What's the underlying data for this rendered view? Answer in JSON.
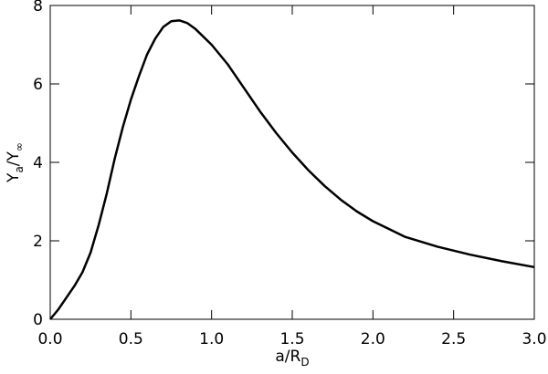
{
  "chart_data": {
    "type": "line",
    "xlabel": {
      "main": "a/R",
      "sub": "D"
    },
    "ylabel": {
      "main": "Y",
      "sub": "a",
      "main2": "/Y",
      "sub2": "∞"
    },
    "x": [
      0.0,
      0.05,
      0.1,
      0.15,
      0.2,
      0.25,
      0.3,
      0.35,
      0.4,
      0.45,
      0.5,
      0.55,
      0.6,
      0.65,
      0.7,
      0.75,
      0.8,
      0.85,
      0.9,
      1.0,
      1.1,
      1.2,
      1.3,
      1.4,
      1.5,
      1.6,
      1.7,
      1.8,
      1.9,
      2.0,
      2.2,
      2.4,
      2.6,
      2.8,
      3.0
    ],
    "values": [
      0.0,
      0.25,
      0.55,
      0.85,
      1.2,
      1.7,
      2.4,
      3.2,
      4.1,
      4.9,
      5.6,
      6.2,
      6.75,
      7.15,
      7.45,
      7.6,
      7.62,
      7.55,
      7.4,
      7.0,
      6.5,
      5.9,
      5.3,
      4.75,
      4.25,
      3.8,
      3.4,
      3.05,
      2.75,
      2.5,
      2.1,
      1.85,
      1.65,
      1.48,
      1.33
    ],
    "color": "#000000",
    "xlim": [
      0,
      3
    ],
    "ylim": [
      0,
      8
    ],
    "xticks": [
      {
        "value": 0,
        "label": "0.0"
      },
      {
        "value": 0.5,
        "label": "0.5"
      },
      {
        "value": 1,
        "label": "1.0"
      },
      {
        "value": 1.5,
        "label": "1.5"
      },
      {
        "value": 2,
        "label": "2.0"
      },
      {
        "value": 2.5,
        "label": "2.5"
      },
      {
        "value": 3,
        "label": "3.0"
      }
    ],
    "yticks": [
      0,
      2,
      4,
      6,
      8
    ],
    "grid": false
  }
}
